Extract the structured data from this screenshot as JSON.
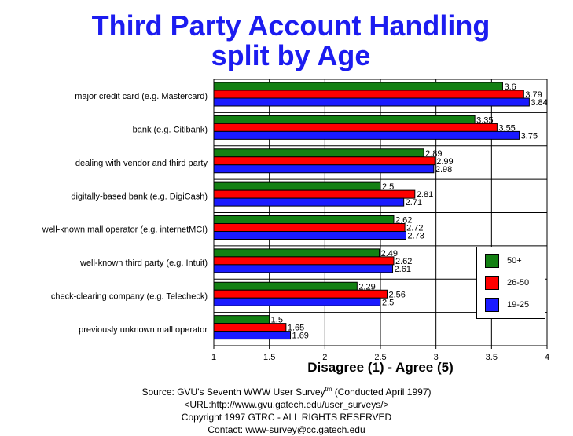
{
  "title": {
    "line1": "Third Party Account Handling",
    "line2": "split by Age"
  },
  "chart_data": {
    "type": "bar",
    "orientation": "horizontal",
    "categories": [
      "major credit card (e.g. Mastercard)",
      "bank (e.g. Citibank)",
      "dealing with vendor and third party",
      "digitally-based bank (e.g. DigiCash)",
      "well-known mall operator (e.g. internetMCI)",
      "well-known third party (e.g. Intuit)",
      "check-clearing company (e.g. Telecheck)",
      "previously unknown mall operator"
    ],
    "series": [
      {
        "name": "50+",
        "color": "#138013",
        "values": [
          3.6,
          3.35,
          2.89,
          2.5,
          2.62,
          2.49,
          2.29,
          1.5
        ],
        "labels": [
          "3.6",
          "3.35",
          "2.89",
          "2.5",
          "2.62",
          "2.49",
          "2.29",
          "1.5"
        ]
      },
      {
        "name": "26-50",
        "color": "#ff0000",
        "values": [
          3.79,
          3.55,
          2.99,
          2.81,
          2.72,
          2.62,
          2.56,
          1.65
        ],
        "labels": [
          "3.79",
          "3.55",
          "2.99",
          "2.81",
          "2.72",
          "2.62",
          "2.56",
          "1.65"
        ]
      },
      {
        "name": "19-25",
        "color": "#1a1aff",
        "values": [
          3.84,
          3.75,
          2.98,
          2.71,
          2.73,
          2.61,
          2.5,
          1.69
        ],
        "labels": [
          "3.84",
          "3.75",
          "2.98",
          "2.71",
          "2.73",
          "2.61",
          "2.5",
          "1.69"
        ]
      }
    ],
    "xlim": [
      1,
      4
    ],
    "xticks": [
      "1",
      "1.5",
      "2",
      "2.5",
      "3",
      "3.5",
      "4"
    ],
    "xlabel": "Disagree (1) - Agree (5)",
    "grid": true,
    "legend_position": "bottom-right"
  },
  "footer": {
    "source_prefix": "Source: GVU's Seventh WWW User Survey",
    "source_sup": "tm",
    "source_suffix": " (Conducted April 1997)",
    "url": "<URL:http://www.gvu.gatech.edu/user_surveys/>",
    "copyright": "Copyright 1997 GTRC - ALL RIGHTS RESERVED",
    "contact": "Contact: www-survey@cc.gatech.edu"
  }
}
